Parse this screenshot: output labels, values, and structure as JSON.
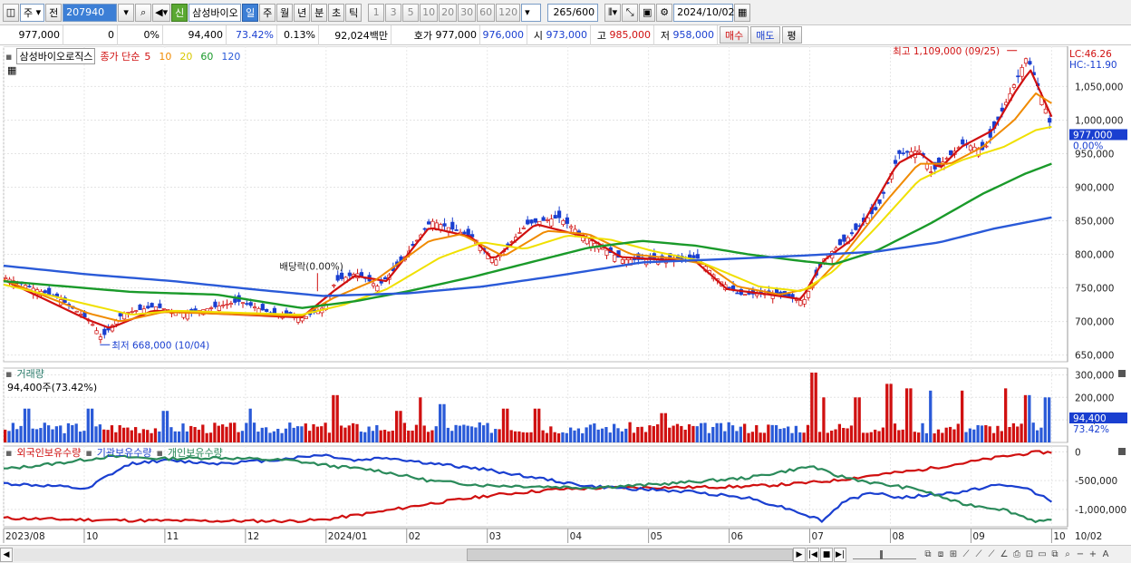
{
  "toolbar": {
    "market": "주",
    "prev": "전",
    "code": "207940",
    "credit_badge": "신",
    "name": "삼성바이오",
    "periods": [
      "일",
      "주",
      "월",
      "년",
      "분",
      "초",
      "틱"
    ],
    "selected_period": "일",
    "intervals": [
      "1",
      "3",
      "5",
      "10",
      "20",
      "30",
      "60",
      "120"
    ],
    "count": "265",
    "count_total": "/600",
    "date": "2024/10/02"
  },
  "quote": {
    "price": "977,000",
    "change": "0",
    "change_pct": "0%",
    "volume": "94,400",
    "volume_ratio": "73.42%",
    "turnover": "0.13%",
    "amount": "92,024백만",
    "bid_label": "호가",
    "bid": "977,000",
    "ask": "976,000",
    "open_label": "시",
    "open": "973,000",
    "high_label": "고",
    "high": "985,000",
    "low_label": "저",
    "low": "958,000",
    "buy": "매수",
    "sell": "매도",
    "eval": "평"
  },
  "price_panel": {
    "stock_name": "삼성바이오로직스",
    "ma_label": "종가 단순",
    "ma": [
      {
        "p": "5",
        "color": "#d01010"
      },
      {
        "p": "10",
        "color": "#f08a00"
      },
      {
        "p": "20",
        "color": "#f0e000"
      },
      {
        "p": "60",
        "color": "#1a9a2a"
      },
      {
        "p": "120",
        "color": "#2a5ad8"
      }
    ],
    "lc": "LC:46.26",
    "hc": "HC:-11.90",
    "current_tag": "977,000",
    "current_pct": "0.00%",
    "high_note": "최고 1,109,000 (09/25)",
    "low_note": "최저 668,000 (10/04)",
    "dividend_note": "배당락(0.00%)"
  },
  "volume_panel": {
    "title": "거래량",
    "value_text": "94,400주(73.42%)",
    "tag": "94,400",
    "tag_pct": "73.42%"
  },
  "holding_panel": {
    "series": [
      "외국인보유수량",
      "기관보유수량",
      "개인보유수량"
    ],
    "colors": [
      "#d01010",
      "#1a3fd0",
      "#2a8a5a"
    ]
  },
  "x_axis": [
    "2023/08",
    "10",
    "11",
    "12",
    "2024/01",
    "02",
    "03",
    "04",
    "05",
    "06",
    "07",
    "08",
    "09",
    "10"
  ],
  "x_axis_right": "10/02",
  "chart_data": [
    {
      "type": "candlestick",
      "title": "삼성바이오로직스",
      "ylim": [
        640000,
        1110000
      ],
      "yticks": [
        650000,
        700000,
        750000,
        800000,
        850000,
        900000,
        950000,
        1000000,
        1050000
      ],
      "ytick_labels": [
        "650,000",
        "700,000",
        "750,000",
        "800,000",
        "850,000",
        "900,000",
        "950,000",
        "1,000,000",
        "1,050,000"
      ],
      "close_path": [
        [
          0,
          765000
        ],
        [
          0.05,
          735000
        ],
        [
          0.08,
          700000
        ],
        [
          0.09,
          675000
        ],
        [
          0.11,
          712000
        ],
        [
          0.14,
          722000
        ],
        [
          0.17,
          712000
        ],
        [
          0.22,
          730000
        ],
        [
          0.25,
          712000
        ],
        [
          0.28,
          705000
        ],
        [
          0.3,
          722000
        ],
        [
          0.31,
          760000
        ],
        [
          0.33,
          772000
        ],
        [
          0.35,
          752000
        ],
        [
          0.37,
          785000
        ],
        [
          0.4,
          850000
        ],
        [
          0.44,
          825000
        ],
        [
          0.46,
          790000
        ],
        [
          0.49,
          845000
        ],
        [
          0.52,
          855000
        ],
        [
          0.55,
          820000
        ],
        [
          0.58,
          792000
        ],
        [
          0.62,
          792000
        ],
        [
          0.65,
          795000
        ],
        [
          0.67,
          762000
        ],
        [
          0.69,
          740000
        ],
        [
          0.72,
          742000
        ],
        [
          0.75,
          730000
        ],
        [
          0.77,
          795000
        ],
        [
          0.79,
          822000
        ],
        [
          0.82,
          870000
        ],
        [
          0.84,
          950000
        ],
        [
          0.86,
          955000
        ],
        [
          0.87,
          922000
        ],
        [
          0.9,
          965000
        ],
        [
          0.92,
          955000
        ],
        [
          0.93,
          990000
        ],
        [
          0.95,
          1060000
        ],
        [
          0.96,
          1095000
        ],
        [
          0.975,
          1030000
        ],
        [
          0.985,
          977000
        ]
      ],
      "ma_paths": [
        {
          "name": "5",
          "values": [
            [
              0,
              762000
            ],
            [
              0.08,
              702000
            ],
            [
              0.1,
              690000
            ],
            [
              0.14,
              716000
            ],
            [
              0.28,
              706000
            ],
            [
              0.31,
              745000
            ],
            [
              0.33,
              768000
            ],
            [
              0.36,
              760000
            ],
            [
              0.4,
              840000
            ],
            [
              0.44,
              826000
            ],
            [
              0.46,
              792000
            ],
            [
              0.5,
              845000
            ],
            [
              0.55,
              825000
            ],
            [
              0.58,
              796000
            ],
            [
              0.62,
              792000
            ],
            [
              0.65,
              790000
            ],
            [
              0.68,
              748000
            ],
            [
              0.72,
              740000
            ],
            [
              0.75,
              733000
            ],
            [
              0.77,
              790000
            ],
            [
              0.8,
              825000
            ],
            [
              0.84,
              935000
            ],
            [
              0.86,
              952000
            ],
            [
              0.88,
              928000
            ],
            [
              0.9,
              960000
            ],
            [
              0.93,
              985000
            ],
            [
              0.95,
              1040000
            ],
            [
              0.965,
              1075000
            ],
            [
              0.985,
              1005000
            ]
          ]
        },
        {
          "name": "10",
          "values": [
            [
              0,
              762000
            ],
            [
              0.08,
              712000
            ],
            [
              0.11,
              700000
            ],
            [
              0.15,
              714000
            ],
            [
              0.28,
              708000
            ],
            [
              0.31,
              735000
            ],
            [
              0.35,
              762000
            ],
            [
              0.4,
              820000
            ],
            [
              0.43,
              830000
            ],
            [
              0.47,
              797000
            ],
            [
              0.51,
              835000
            ],
            [
              0.55,
              830000
            ],
            [
              0.59,
              800000
            ],
            [
              0.63,
              794000
            ],
            [
              0.66,
              785000
            ],
            [
              0.69,
              752000
            ],
            [
              0.73,
              740000
            ],
            [
              0.76,
              750000
            ],
            [
              0.79,
              800000
            ],
            [
              0.83,
              880000
            ],
            [
              0.86,
              935000
            ],
            [
              0.89,
              935000
            ],
            [
              0.92,
              960000
            ],
            [
              0.95,
              1000000
            ],
            [
              0.97,
              1040000
            ],
            [
              0.985,
              1025000
            ]
          ]
        },
        {
          "name": "20",
          "values": [
            [
              0,
              755000
            ],
            [
              0.08,
              725000
            ],
            [
              0.12,
              710000
            ],
            [
              0.16,
              716000
            ],
            [
              0.28,
              710000
            ],
            [
              0.32,
              725000
            ],
            [
              0.36,
              748000
            ],
            [
              0.41,
              795000
            ],
            [
              0.45,
              818000
            ],
            [
              0.49,
              808000
            ],
            [
              0.53,
              828000
            ],
            [
              0.57,
              822000
            ],
            [
              0.61,
              805000
            ],
            [
              0.65,
              792000
            ],
            [
              0.68,
              772000
            ],
            [
              0.71,
              752000
            ],
            [
              0.75,
              745000
            ],
            [
              0.78,
              775000
            ],
            [
              0.82,
              840000
            ],
            [
              0.86,
              910000
            ],
            [
              0.9,
              940000
            ],
            [
              0.94,
              960000
            ],
            [
              0.97,
              985000
            ],
            [
              0.985,
              990000
            ]
          ]
        },
        {
          "name": "60",
          "values": [
            [
              0,
              760000
            ],
            [
              0.06,
              752000
            ],
            [
              0.12,
              744000
            ],
            [
              0.2,
              740000
            ],
            [
              0.28,
              720000
            ],
            [
              0.33,
              730000
            ],
            [
              0.38,
              745000
            ],
            [
              0.44,
              766000
            ],
            [
              0.5,
              790000
            ],
            [
              0.55,
              810000
            ],
            [
              0.6,
              820000
            ],
            [
              0.65,
              813000
            ],
            [
              0.7,
              800000
            ],
            [
              0.75,
              790000
            ],
            [
              0.78,
              785000
            ],
            [
              0.82,
              805000
            ],
            [
              0.87,
              845000
            ],
            [
              0.92,
              890000
            ],
            [
              0.96,
              920000
            ],
            [
              0.985,
              935000
            ]
          ]
        },
        {
          "name": "120",
          "values": [
            [
              0,
              783000
            ],
            [
              0.08,
              770000
            ],
            [
              0.16,
              760000
            ],
            [
              0.24,
              747000
            ],
            [
              0.3,
              738000
            ],
            [
              0.38,
              742000
            ],
            [
              0.45,
              752000
            ],
            [
              0.52,
              768000
            ],
            [
              0.6,
              788000
            ],
            [
              0.68,
              793000
            ],
            [
              0.75,
              798000
            ],
            [
              0.82,
              804000
            ],
            [
              0.88,
              818000
            ],
            [
              0.93,
              838000
            ],
            [
              0.985,
              855000
            ]
          ]
        }
      ]
    },
    {
      "type": "bar",
      "title": "거래량",
      "ylim": [
        0,
        330000
      ],
      "yticks": [
        100000,
        200000,
        300000
      ],
      "ytick_labels": [
        "100,000",
        "200,000",
        "300,000"
      ],
      "bars_count": 265,
      "peak_positions": [
        0.02,
        0.08,
        0.15,
        0.23,
        0.31,
        0.37,
        0.39,
        0.41,
        0.47,
        0.5,
        0.62,
        0.76,
        0.77,
        0.8,
        0.83,
        0.85,
        0.87,
        0.9,
        0.94,
        0.96,
        0.98
      ],
      "peak_values": [
        150000,
        150000,
        140000,
        150000,
        210000,
        140000,
        200000,
        170000,
        150000,
        150000,
        130000,
        310000,
        200000,
        200000,
        260000,
        240000,
        230000,
        230000,
        240000,
        210000,
        200000
      ]
    },
    {
      "type": "line",
      "title": "외국인보유수량 / 기관보유수량 / 개인보유수량",
      "ylim": [
        -1300000,
        100000
      ],
      "yticks": [
        0,
        -500000,
        -1000000
      ],
      "ytick_labels": [
        "0",
        "-500,000",
        "-1,000,000"
      ],
      "series": [
        {
          "name": "외국인보유수량",
          "values": [
            [
              0,
              -1150000
            ],
            [
              0.05,
              -1170000
            ],
            [
              0.12,
              -1190000
            ],
            [
              0.2,
              -1200000
            ],
            [
              0.27,
              -1200000
            ],
            [
              0.3,
              -1180000
            ],
            [
              0.35,
              -1050000
            ],
            [
              0.4,
              -900000
            ],
            [
              0.46,
              -750000
            ],
            [
              0.52,
              -650000
            ],
            [
              0.58,
              -620000
            ],
            [
              0.65,
              -615000
            ],
            [
              0.7,
              -600000
            ],
            [
              0.74,
              -560000
            ],
            [
              0.78,
              -500000
            ],
            [
              0.82,
              -400000
            ],
            [
              0.86,
              -320000
            ],
            [
              0.9,
              -200000
            ],
            [
              0.94,
              -80000
            ],
            [
              0.97,
              -10000
            ],
            [
              0.985,
              -10000
            ]
          ]
        },
        {
          "name": "기관보유수량",
          "values": [
            [
              0,
              -550000
            ],
            [
              0.05,
              -600000
            ],
            [
              0.08,
              -650000
            ],
            [
              0.09,
              -500000
            ],
            [
              0.12,
              -200000
            ],
            [
              0.15,
              -150000
            ],
            [
              0.2,
              -200000
            ],
            [
              0.25,
              -150000
            ],
            [
              0.3,
              -50000
            ],
            [
              0.33,
              -150000
            ],
            [
              0.36,
              -100000
            ],
            [
              0.4,
              -200000
            ],
            [
              0.45,
              -300000
            ],
            [
              0.5,
              -450000
            ],
            [
              0.55,
              -600000
            ],
            [
              0.6,
              -650000
            ],
            [
              0.65,
              -700000
            ],
            [
              0.7,
              -800000
            ],
            [
              0.74,
              -1000000
            ],
            [
              0.77,
              -1200000
            ],
            [
              0.79,
              -850000
            ],
            [
              0.82,
              -700000
            ],
            [
              0.84,
              -800000
            ],
            [
              0.87,
              -750000
            ],
            [
              0.9,
              -700000
            ],
            [
              0.93,
              -580000
            ],
            [
              0.96,
              -620000
            ],
            [
              0.985,
              -850000
            ]
          ]
        },
        {
          "name": "개인보유수량",
          "values": [
            [
              0,
              -300000
            ],
            [
              0.05,
              -200000
            ],
            [
              0.1,
              -80000
            ],
            [
              0.15,
              -120000
            ],
            [
              0.2,
              -100000
            ],
            [
              0.27,
              -150000
            ],
            [
              0.31,
              -250000
            ],
            [
              0.35,
              -320000
            ],
            [
              0.4,
              -500000
            ],
            [
              0.45,
              -580000
            ],
            [
              0.5,
              -600000
            ],
            [
              0.55,
              -620000
            ],
            [
              0.6,
              -580000
            ],
            [
              0.65,
              -520000
            ],
            [
              0.7,
              -450000
            ],
            [
              0.73,
              -350000
            ],
            [
              0.76,
              -250000
            ],
            [
              0.78,
              -400000
            ],
            [
              0.82,
              -550000
            ],
            [
              0.86,
              -650000
            ],
            [
              0.9,
              -900000
            ],
            [
              0.94,
              -1000000
            ],
            [
              0.97,
              -1200000
            ],
            [
              0.985,
              -1200000
            ]
          ]
        }
      ]
    }
  ]
}
